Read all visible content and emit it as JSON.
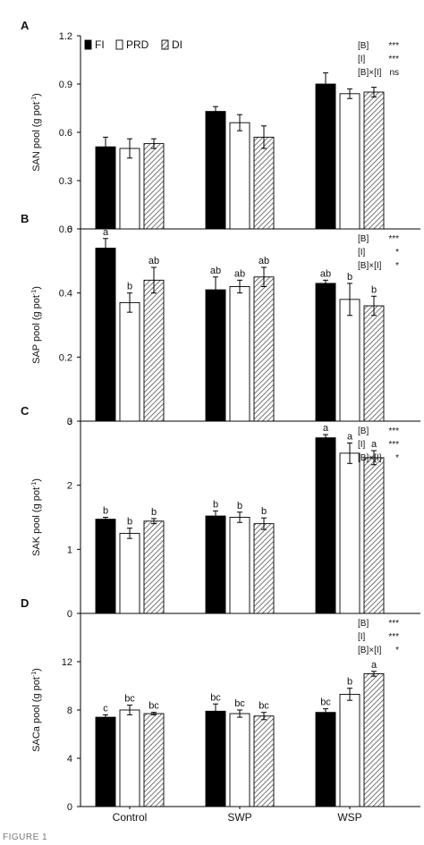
{
  "caption": "FIGURE 1",
  "legend": {
    "items": [
      {
        "label": "FI",
        "fill": "#000000",
        "pattern": "solid"
      },
      {
        "label": "PRD",
        "fill": "#ffffff",
        "pattern": "open"
      },
      {
        "label": "DI",
        "fill": "#ffffff",
        "pattern": "hatch"
      }
    ]
  },
  "colors": {
    "axis": "#000000",
    "bar_stroke": "#000000",
    "hatch": "#555555"
  },
  "categories": [
    "Control",
    "SWP",
    "WSP"
  ],
  "chart_data": [
    {
      "panel": "A",
      "type": "bar",
      "ylabel_base": "SAN pool (g pot",
      "ylabel_sup": "-1",
      "ylabel_end": ")",
      "ylim": [
        0,
        1.2
      ],
      "yticks": [
        "0",
        "0.3",
        "0.6",
        "0.9",
        "1.2"
      ],
      "categories": [
        "Control",
        "SWP",
        "WSP"
      ],
      "series": [
        {
          "name": "FI",
          "values": [
            0.51,
            0.73,
            0.9
          ],
          "errors": [
            0.06,
            0.03,
            0.07
          ],
          "letters": [
            "",
            "",
            ""
          ]
        },
        {
          "name": "PRD",
          "values": [
            0.5,
            0.66,
            0.84
          ],
          "errors": [
            0.06,
            0.05,
            0.03
          ],
          "letters": [
            "",
            "",
            ""
          ]
        },
        {
          "name": "DI",
          "values": [
            0.53,
            0.57,
            0.85
          ],
          "errors": [
            0.03,
            0.07,
            0.03
          ],
          "letters": [
            "",
            "",
            ""
          ]
        }
      ],
      "stats": [
        [
          "[B]",
          "***"
        ],
        [
          "[I]",
          "***"
        ],
        [
          "[B]×[I]",
          "ns"
        ]
      ],
      "show_legend": true
    },
    {
      "panel": "B",
      "type": "bar",
      "ylabel_base": "SAP pool (g pot",
      "ylabel_sup": "-1",
      "ylabel_end": ")",
      "ylim": [
        0,
        0.6
      ],
      "yticks": [
        "0",
        "0.2",
        "0.4",
        "0.6"
      ],
      "categories": [
        "Control",
        "SWP",
        "WSP"
      ],
      "series": [
        {
          "name": "FI",
          "values": [
            0.54,
            0.41,
            0.43
          ],
          "errors": [
            0.03,
            0.04,
            0.01
          ],
          "letters": [
            "a",
            "ab",
            "ab"
          ]
        },
        {
          "name": "PRD",
          "values": [
            0.37,
            0.42,
            0.38
          ],
          "errors": [
            0.03,
            0.02,
            0.05
          ],
          "letters": [
            "b",
            "ab",
            "b"
          ]
        },
        {
          "name": "DI",
          "values": [
            0.44,
            0.45,
            0.36
          ],
          "errors": [
            0.04,
            0.03,
            0.03
          ],
          "letters": [
            "ab",
            "ab",
            "b"
          ]
        }
      ],
      "stats": [
        [
          "[B]",
          "***"
        ],
        [
          "[I]",
          "*"
        ],
        [
          "[B]×[I]",
          "*"
        ]
      ],
      "show_legend": false
    },
    {
      "panel": "C",
      "type": "bar",
      "ylabel_base": "SAK pool (g pot",
      "ylabel_sup": "-1",
      "ylabel_end": ")",
      "ylim": [
        0,
        3
      ],
      "yticks": [
        "0",
        "1",
        "2",
        "3"
      ],
      "categories": [
        "Control",
        "SWP",
        "WSP"
      ],
      "series": [
        {
          "name": "FI",
          "values": [
            1.47,
            1.52,
            2.74
          ],
          "errors": [
            0.03,
            0.08,
            0.05
          ],
          "letters": [
            "b",
            "b",
            "a"
          ]
        },
        {
          "name": "PRD",
          "values": [
            1.25,
            1.5,
            2.5
          ],
          "errors": [
            0.08,
            0.08,
            0.16
          ],
          "letters": [
            "b",
            "b",
            "a"
          ]
        },
        {
          "name": "DI",
          "values": [
            1.44,
            1.4,
            2.43
          ],
          "errors": [
            0.04,
            0.09,
            0.11
          ],
          "letters": [
            "b",
            "b",
            "a"
          ]
        }
      ],
      "stats": [
        [
          "[B]",
          "***"
        ],
        [
          "[I]",
          "***"
        ],
        [
          "[B]×[I]",
          "*"
        ]
      ],
      "show_legend": false
    },
    {
      "panel": "D",
      "type": "bar",
      "ylabel_base": "SACa pool (g pot",
      "ylabel_sup": "-1",
      "ylabel_end": ")",
      "ylim": [
        0,
        16
      ],
      "yticks": [
        "0",
        "4",
        "8",
        "12"
      ],
      "categories": [
        "Control",
        "SWP",
        "WSP"
      ],
      "series": [
        {
          "name": "FI",
          "values": [
            7.4,
            7.9,
            7.8
          ],
          "errors": [
            0.2,
            0.6,
            0.3
          ],
          "letters": [
            "c",
            "bc",
            "bc"
          ]
        },
        {
          "name": "PRD",
          "values": [
            8.0,
            7.7,
            9.3
          ],
          "errors": [
            0.4,
            0.3,
            0.5
          ],
          "letters": [
            "bc",
            "bc",
            "b"
          ]
        },
        {
          "name": "DI",
          "values": [
            7.7,
            7.5,
            11.0
          ],
          "errors": [
            0.1,
            0.3,
            0.2
          ],
          "letters": [
            "bc",
            "bc",
            "a"
          ]
        }
      ],
      "stats": [
        [
          "[B]",
          "***"
        ],
        [
          "[I]",
          "***"
        ],
        [
          "[B]×[I]",
          "*"
        ]
      ],
      "show_legend": false
    }
  ]
}
